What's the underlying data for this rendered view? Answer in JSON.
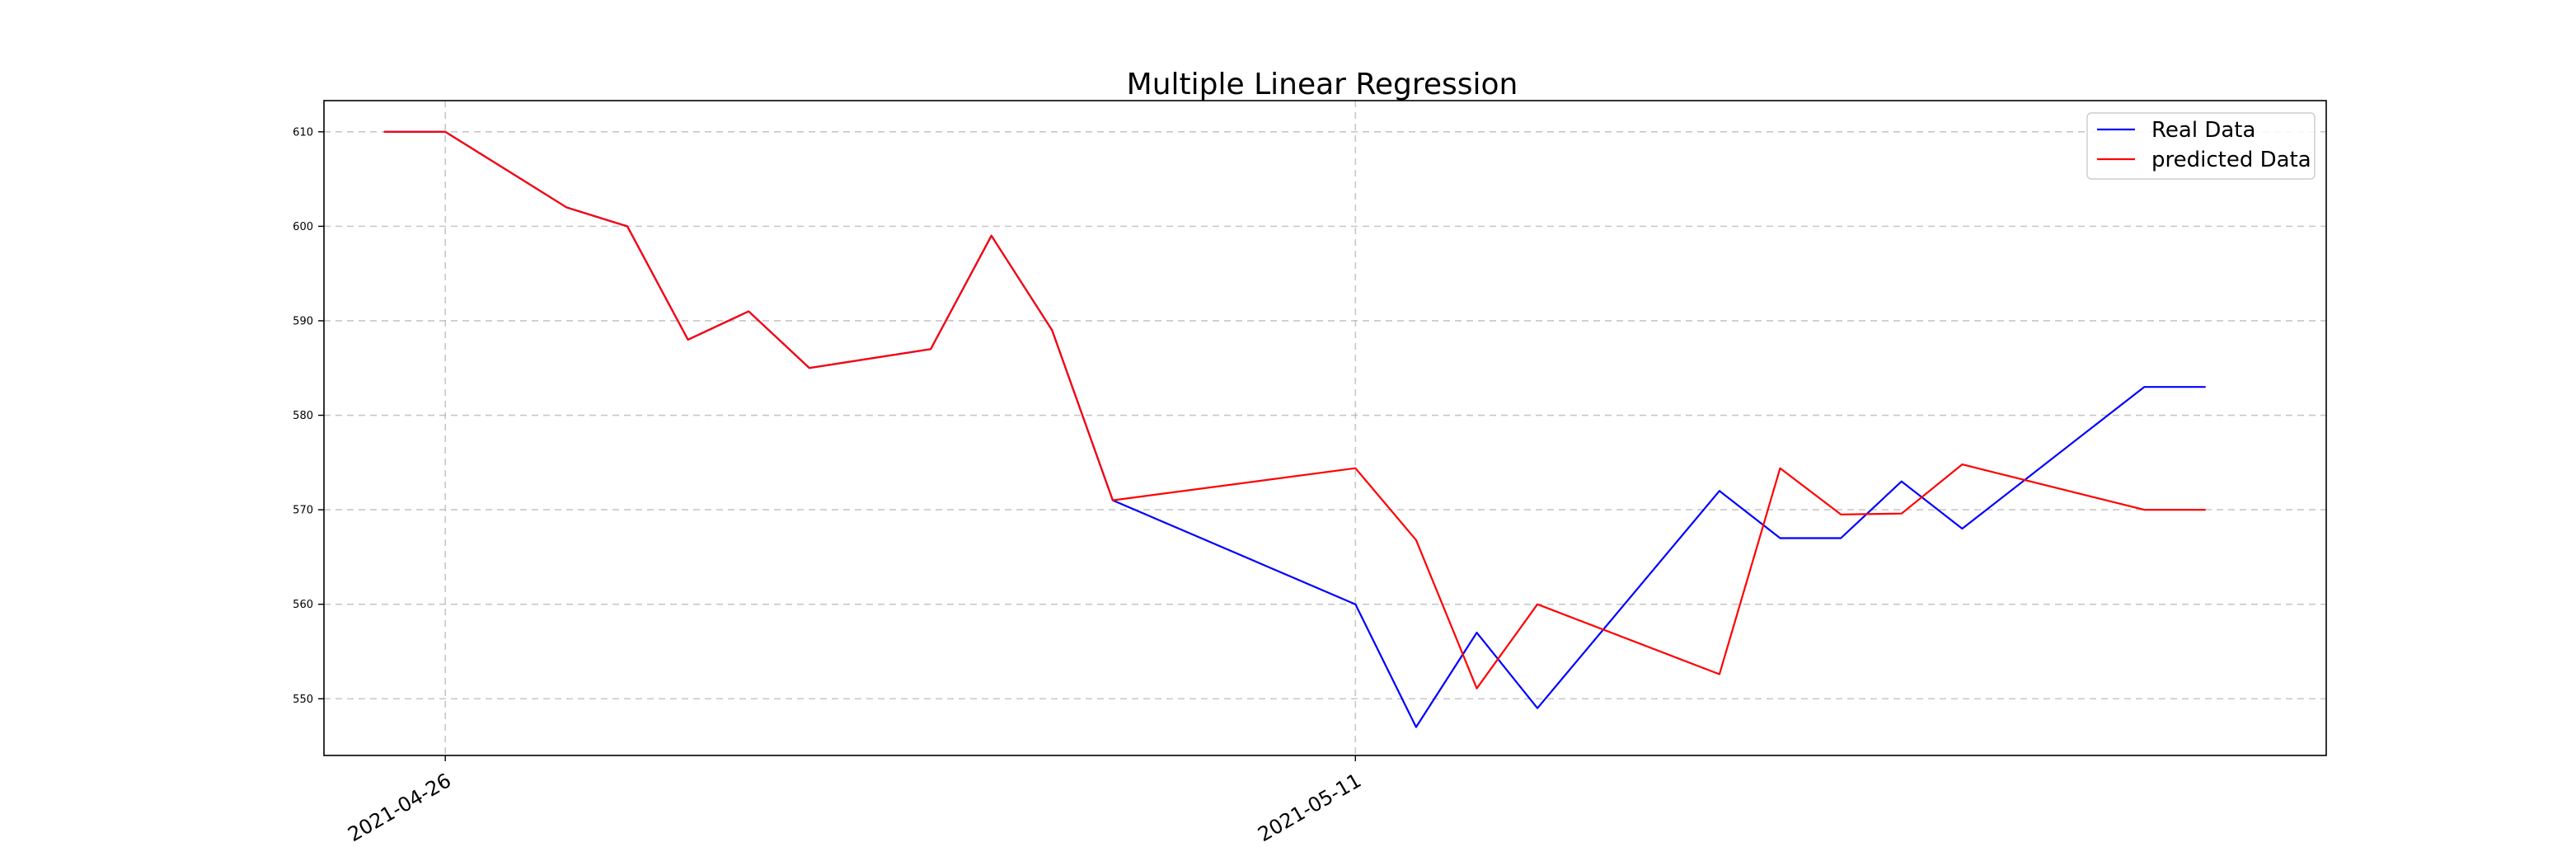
{
  "chart_data": {
    "type": "line",
    "title": "Multiple Linear Regression",
    "xlabel": "",
    "ylabel": "",
    "grid": true,
    "legend_position": "top-right",
    "x_start": "2021-04-25",
    "x": [
      "2021-04-25",
      "2021-04-26",
      "2021-04-27",
      "2021-04-28",
      "2021-04-29",
      "2021-04-30",
      "2021-05-01",
      "2021-05-02",
      "2021-05-03",
      "2021-05-04",
      "2021-05-05",
      "2021-05-06",
      "2021-05-07",
      "2021-05-08",
      "2021-05-09",
      "2021-05-10",
      "2021-05-11",
      "2021-05-12",
      "2021-05-13",
      "2021-05-14",
      "2021-05-15",
      "2021-05-16",
      "2021-05-17",
      "2021-05-18",
      "2021-05-19",
      "2021-05-20",
      "2021-05-21",
      "2021-05-22",
      "2021-05-23",
      "2021-05-24",
      "2021-05-25"
    ],
    "x_ticks": [
      "2021-04-26",
      "2021-05-11"
    ],
    "y_ticks": [
      550,
      560,
      570,
      580,
      590,
      600,
      610
    ],
    "xlim": [
      "2021-04-24",
      "2021-05-27"
    ],
    "ylim": [
      544,
      613.3
    ],
    "series": [
      {
        "name": "Real Data",
        "color": "#0000ff",
        "x": [
          "2021-04-25",
          "2021-04-26",
          "2021-04-28",
          "2021-04-29",
          "2021-04-30",
          "2021-05-01",
          "2021-05-02",
          "2021-05-04",
          "2021-05-05",
          "2021-05-06",
          "2021-05-07",
          "2021-05-11",
          "2021-05-12",
          "2021-05-13",
          "2021-05-14",
          "2021-05-17",
          "2021-05-18",
          "2021-05-19",
          "2021-05-20",
          "2021-05-21",
          "2021-05-24",
          "2021-05-25"
        ],
        "values": [
          610,
          610,
          602,
          600,
          588,
          591,
          585,
          587,
          599,
          589,
          571,
          560,
          547,
          557,
          549,
          572,
          567,
          567,
          573,
          568,
          583,
          583
        ]
      },
      {
        "name": "predicted Data",
        "color": "#ff0000",
        "x": [
          "2021-04-25",
          "2021-04-26",
          "2021-04-28",
          "2021-04-29",
          "2021-04-30",
          "2021-05-01",
          "2021-05-02",
          "2021-05-04",
          "2021-05-05",
          "2021-05-06",
          "2021-05-07",
          "2021-05-11",
          "2021-05-12",
          "2021-05-13",
          "2021-05-14",
          "2021-05-17",
          "2021-05-18",
          "2021-05-19",
          "2021-05-20",
          "2021-05-21",
          "2021-05-24",
          "2021-05-25"
        ],
        "values": [
          610,
          610,
          602,
          600,
          588,
          591,
          585,
          587,
          599,
          589,
          571,
          574.4,
          566.8,
          551.1,
          560,
          552.6,
          574.4,
          569.5,
          569.6,
          574.8,
          570,
          570
        ]
      }
    ]
  }
}
